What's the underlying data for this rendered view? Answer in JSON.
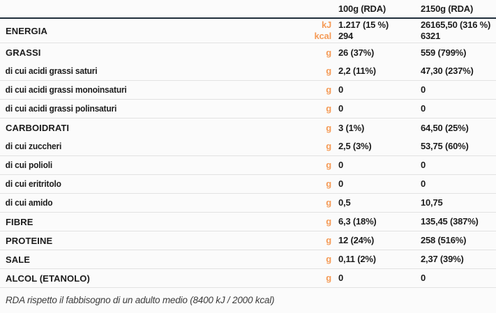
{
  "header": {
    "col_100g": "100g (RDA)",
    "col_2150g": "2150g (RDA)"
  },
  "rows": [
    {
      "label": "ENERGIA",
      "category": true,
      "divider": true,
      "units": [
        "kJ",
        "kcal"
      ],
      "per_100g": [
        "1.217 (15 %)",
        "294"
      ],
      "per_2150g": [
        "26165,50 (316 %)",
        "6321"
      ]
    },
    {
      "label": "GRASSI",
      "category": true,
      "divider": false,
      "units": [
        "g"
      ],
      "per_100g": [
        "26 (37%)"
      ],
      "per_2150g": [
        "559 (799%)"
      ]
    },
    {
      "label": "di cui acidi grassi saturi",
      "category": false,
      "divider": true,
      "units": [
        "g"
      ],
      "per_100g": [
        "2,2 (11%)"
      ],
      "per_2150g": [
        "47,30 (237%)"
      ]
    },
    {
      "label": "di cui acidi grassi monoinsaturi",
      "category": false,
      "divider": true,
      "units": [
        "g"
      ],
      "per_100g": [
        "0"
      ],
      "per_2150g": [
        "0"
      ]
    },
    {
      "label": "di cui acidi grassi polinsaturi",
      "category": false,
      "divider": true,
      "units": [
        "g"
      ],
      "per_100g": [
        "0"
      ],
      "per_2150g": [
        "0"
      ]
    },
    {
      "label": "CARBOIDRATI",
      "category": true,
      "divider": false,
      "units": [
        "g"
      ],
      "per_100g": [
        "3 (1%)"
      ],
      "per_2150g": [
        "64,50 (25%)"
      ]
    },
    {
      "label": "di cui zuccheri",
      "category": false,
      "divider": true,
      "units": [
        "g"
      ],
      "per_100g": [
        "2,5 (3%)"
      ],
      "per_2150g": [
        "53,75 (60%)"
      ]
    },
    {
      "label": "di cui polioli",
      "category": false,
      "divider": true,
      "units": [
        "g"
      ],
      "per_100g": [
        "0"
      ],
      "per_2150g": [
        "0"
      ]
    },
    {
      "label": "di cui eritritolo",
      "category": false,
      "divider": true,
      "units": [
        "g"
      ],
      "per_100g": [
        "0"
      ],
      "per_2150g": [
        "0"
      ]
    },
    {
      "label": "di cui amido",
      "category": false,
      "divider": true,
      "units": [
        "g"
      ],
      "per_100g": [
        "0,5"
      ],
      "per_2150g": [
        "10,75"
      ]
    },
    {
      "label": "FIBRE",
      "category": true,
      "divider": true,
      "units": [
        "g"
      ],
      "per_100g": [
        "6,3 (18%)"
      ],
      "per_2150g": [
        "135,45 (387%)"
      ]
    },
    {
      "label": "PROTEINE",
      "category": true,
      "divider": true,
      "units": [
        "g"
      ],
      "per_100g": [
        "12 (24%)"
      ],
      "per_2150g": [
        "258 (516%)"
      ]
    },
    {
      "label": "SALE",
      "category": true,
      "divider": true,
      "units": [
        "g"
      ],
      "per_100g": [
        "0,11 (2%)"
      ],
      "per_2150g": [
        "2,37 (39%)"
      ]
    },
    {
      "label": "ALCOL (ETANOLO)",
      "category": true,
      "divider": true,
      "units": [
        "g"
      ],
      "per_100g": [
        "0"
      ],
      "per_2150g": [
        "0"
      ]
    }
  ],
  "footer": {
    "note": "RDA rispetto il fabbisogno di un adulto medio (8400 kJ / 2000 kcal)"
  },
  "colors": {
    "accent_orange": "#f59b57",
    "header_rule": "#202e3b",
    "divider_gray": "#e2e2e2",
    "text": "#1c1c1c",
    "background": "#fbfbfb"
  }
}
